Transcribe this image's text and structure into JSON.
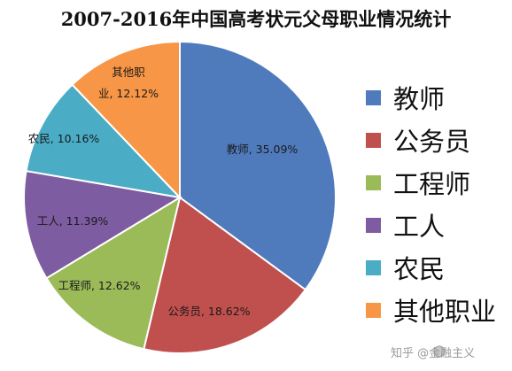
{
  "chart_data": {
    "type": "pie",
    "title": "2007-2016年中国高考状元父母职业情况统计",
    "slices": [
      {
        "name": "教师",
        "value": 35.09,
        "label": "教师, 35.09%",
        "color": "#4F7BBD"
      },
      {
        "name": "公务员",
        "value": 18.62,
        "label": "公务员, 18.62%",
        "color": "#C0504D"
      },
      {
        "name": "工程师",
        "value": 12.62,
        "label": "工程师, 12.62%",
        "color": "#9BBB59"
      },
      {
        "name": "工人",
        "value": 11.39,
        "label": "工人, 11.39%",
        "color": "#7E5CA2"
      },
      {
        "name": "农民",
        "value": 10.16,
        "label": "农民, 10.16%",
        "color": "#4BACC6"
      },
      {
        "name": "其他职业",
        "value": 12.12,
        "label_lines": [
          "其他职",
          "业, 12.12%"
        ],
        "color": "#F79646"
      }
    ],
    "legend": {
      "position": "right",
      "entries": [
        "教师",
        "公务员",
        "工程师",
        "工人",
        "农民",
        "其他职业"
      ]
    }
  },
  "watermark": "知乎 @金融主义"
}
